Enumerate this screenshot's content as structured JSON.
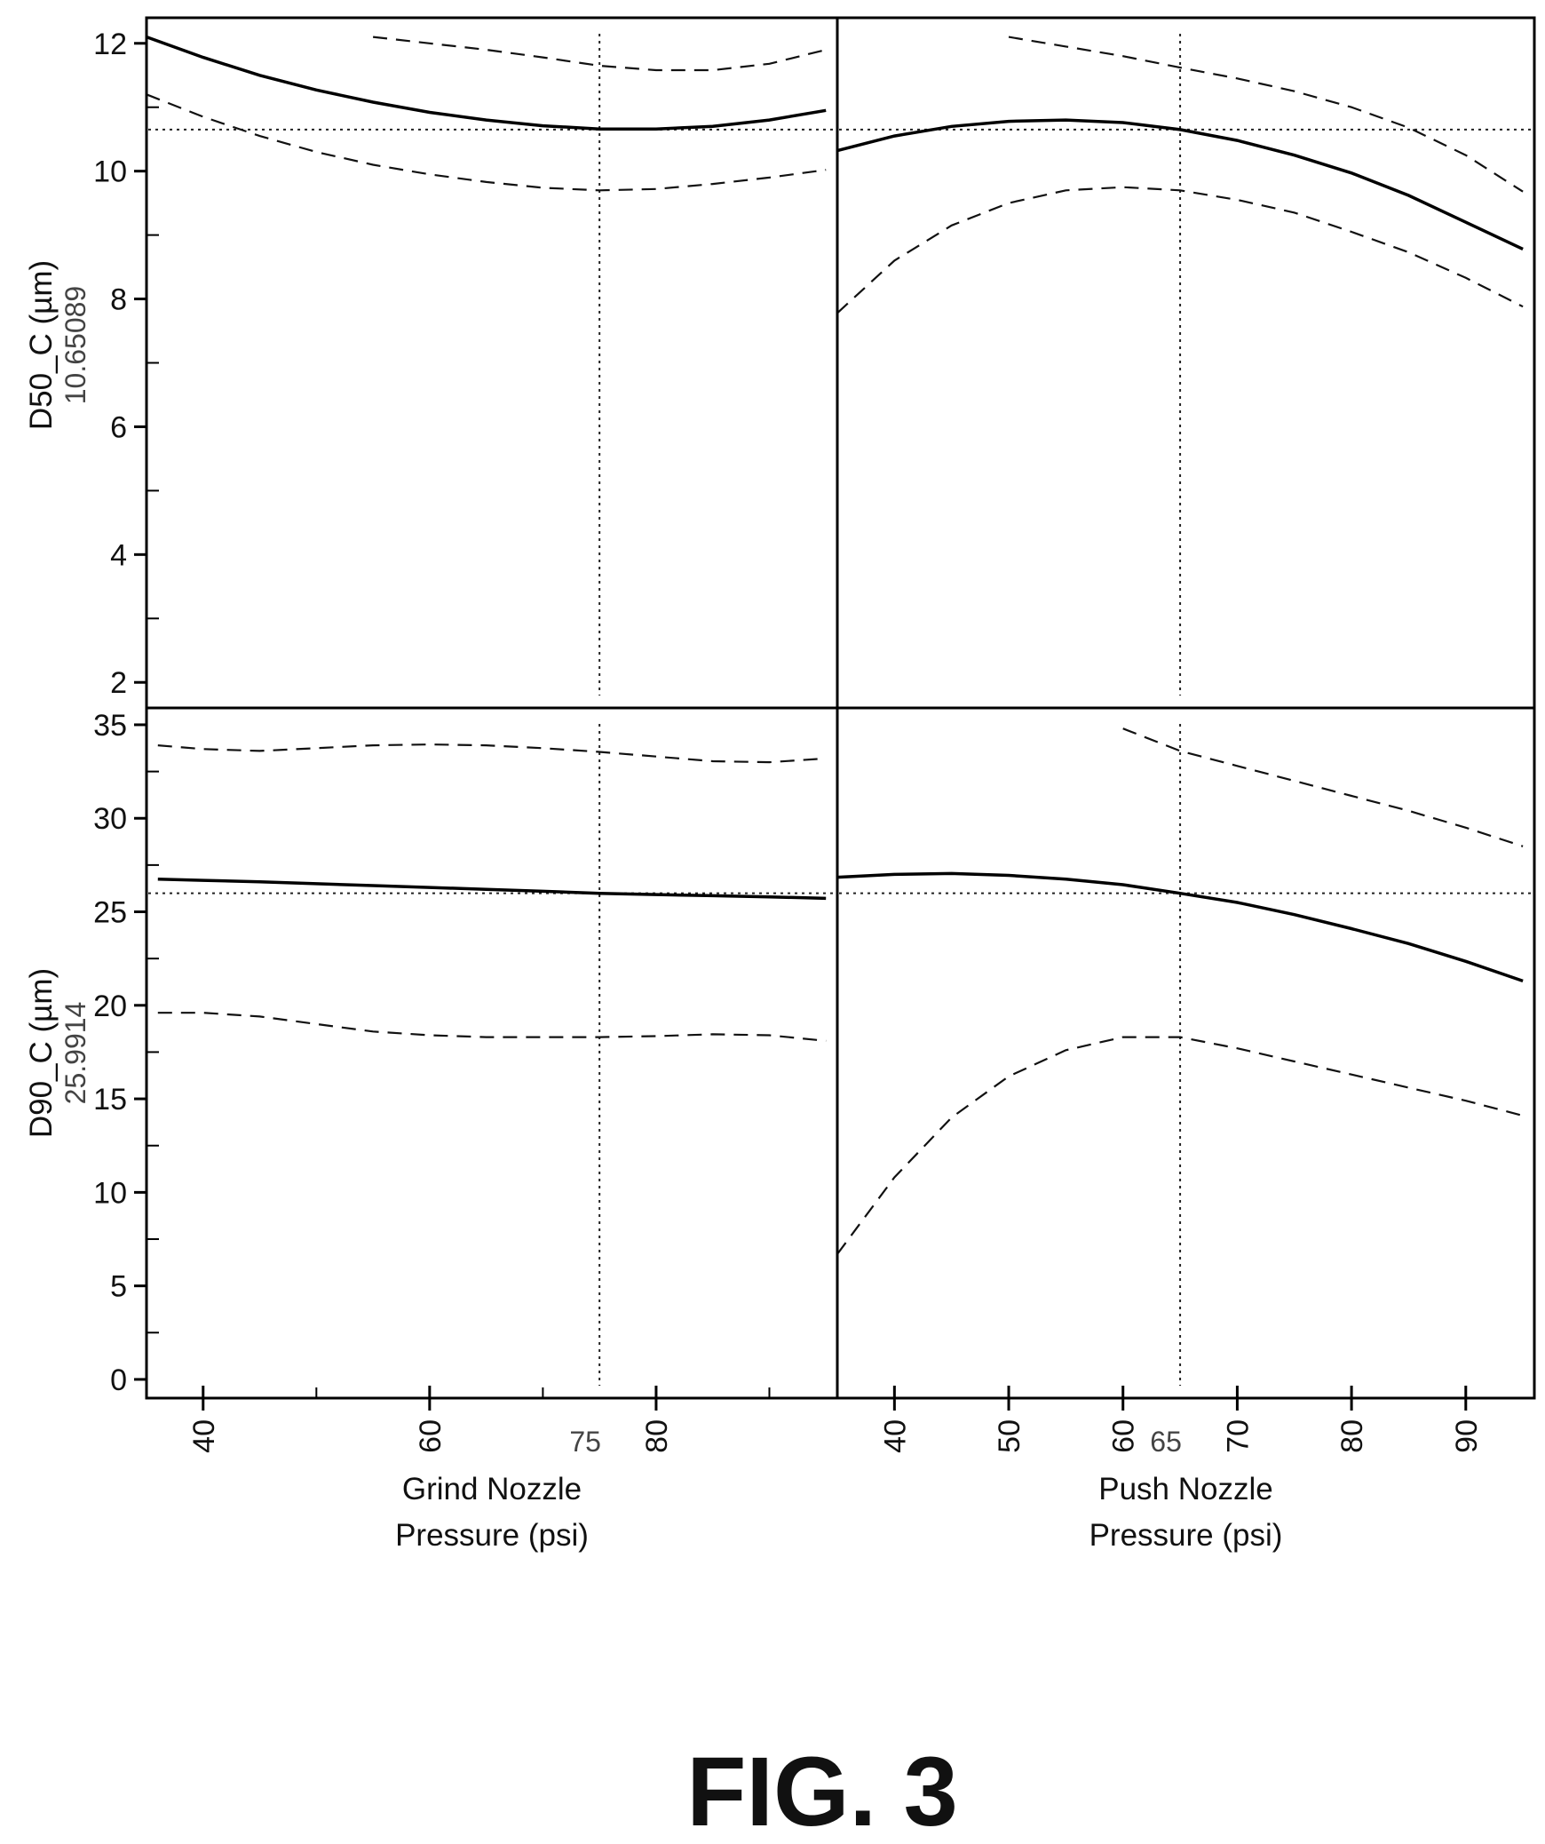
{
  "figure": {
    "title": "FIG. 3"
  },
  "chart_data": {
    "type": "line",
    "columns": [
      {
        "factor": "Grind Nozzle Pressure (psi)",
        "xlabel_lines": [
          "Grind Nozzle",
          "Pressure (psi)"
        ],
        "xlim": [
          35,
          96
        ],
        "xticks": [
          40,
          60,
          80
        ],
        "xminor": [
          50,
          70,
          90
        ],
        "current": 75,
        "current_label": "75"
      },
      {
        "factor": "Push Nozzle Pressure (psi)",
        "xlabel_lines": [
          "Push Nozzle",
          "Pressure (psi)"
        ],
        "xlim": [
          35,
          96
        ],
        "xticks": [
          40,
          50,
          60,
          70,
          80,
          90
        ],
        "xminor": [],
        "current": 65,
        "current_label": "65"
      }
    ],
    "rows": [
      {
        "response": "D50_C (µm)",
        "current_value": 10.65089,
        "current_label": "10.65089",
        "ylim": [
          1.6,
          12.4
        ],
        "yticks": [
          2,
          4,
          6,
          8,
          10,
          12
        ],
        "yminor": [
          3,
          5,
          7,
          9,
          11
        ],
        "panels": [
          {
            "x": [
              35,
              40,
              45,
              50,
              55,
              60,
              65,
              70,
              75,
              80,
              85,
              90,
              95
            ],
            "prediction": [
              12.1,
              11.78,
              11.5,
              11.27,
              11.08,
              10.92,
              10.8,
              10.71,
              10.66,
              10.66,
              10.7,
              10.8,
              10.95
            ],
            "upper": [
              null,
              null,
              null,
              null,
              12.1,
              12.0,
              11.9,
              11.78,
              11.65,
              11.58,
              11.58,
              11.68,
              11.9
            ],
            "lower": [
              11.2,
              10.85,
              10.55,
              10.3,
              10.1,
              9.95,
              9.83,
              9.74,
              9.7,
              9.72,
              9.8,
              9.9,
              10.02
            ]
          },
          {
            "x": [
              35,
              40,
              45,
              50,
              55,
              60,
              65,
              70,
              75,
              80,
              85,
              90,
              95
            ],
            "prediction": [
              10.32,
              10.55,
              10.7,
              10.78,
              10.8,
              10.76,
              10.65,
              10.48,
              10.25,
              9.97,
              9.62,
              9.2,
              8.78
            ],
            "upper": [
              null,
              null,
              null,
              12.1,
              11.95,
              11.8,
              11.62,
              11.45,
              11.25,
              11.0,
              10.68,
              10.25,
              9.68
            ],
            "lower": [
              7.78,
              8.6,
              9.15,
              9.5,
              9.7,
              9.75,
              9.7,
              9.55,
              9.35,
              9.05,
              8.73,
              8.33,
              7.88
            ]
          }
        ]
      },
      {
        "response": "D90_C (µm)",
        "current_value": 25.9914,
        "current_label": "25.9914",
        "ylim": [
          -1,
          35.9
        ],
        "yticks": [
          0,
          5,
          10,
          15,
          20,
          25,
          30,
          35
        ],
        "yminor": [
          2.5,
          7.5,
          12.5,
          17.5,
          22.5,
          27.5,
          32.5
        ],
        "panels": [
          {
            "x": [
              36,
              40,
              45,
              50,
              55,
              60,
              65,
              70,
              75,
              80,
              85,
              90,
              95
            ],
            "prediction": [
              26.75,
              26.68,
              26.6,
              26.5,
              26.4,
              26.3,
              26.2,
              26.1,
              25.99,
              25.92,
              25.86,
              25.8,
              25.72
            ],
            "upper": [
              33.9,
              33.7,
              33.6,
              33.75,
              33.9,
              33.95,
              33.9,
              33.75,
              33.55,
              33.3,
              33.05,
              33.0,
              33.2
            ],
            "lower": [
              19.6,
              19.6,
              19.4,
              19.0,
              18.6,
              18.4,
              18.3,
              18.3,
              18.3,
              18.35,
              18.45,
              18.4,
              18.1
            ]
          },
          {
            "x": [
              35,
              40,
              45,
              50,
              55,
              60,
              65,
              70,
              75,
              80,
              85,
              90,
              95
            ],
            "prediction": [
              26.85,
              27.0,
              27.05,
              26.95,
              26.75,
              26.45,
              25.99,
              25.5,
              24.85,
              24.1,
              23.3,
              22.35,
              21.3
            ],
            "upper": [
              null,
              null,
              null,
              null,
              null,
              34.8,
              33.6,
              32.8,
              32.0,
              31.2,
              30.4,
              29.5,
              28.5
            ],
            "lower": [
              6.7,
              10.8,
              14.0,
              16.2,
              17.6,
              18.3,
              18.3,
              17.7,
              17.0,
              16.3,
              15.6,
              14.9,
              14.1
            ]
          }
        ]
      }
    ]
  }
}
